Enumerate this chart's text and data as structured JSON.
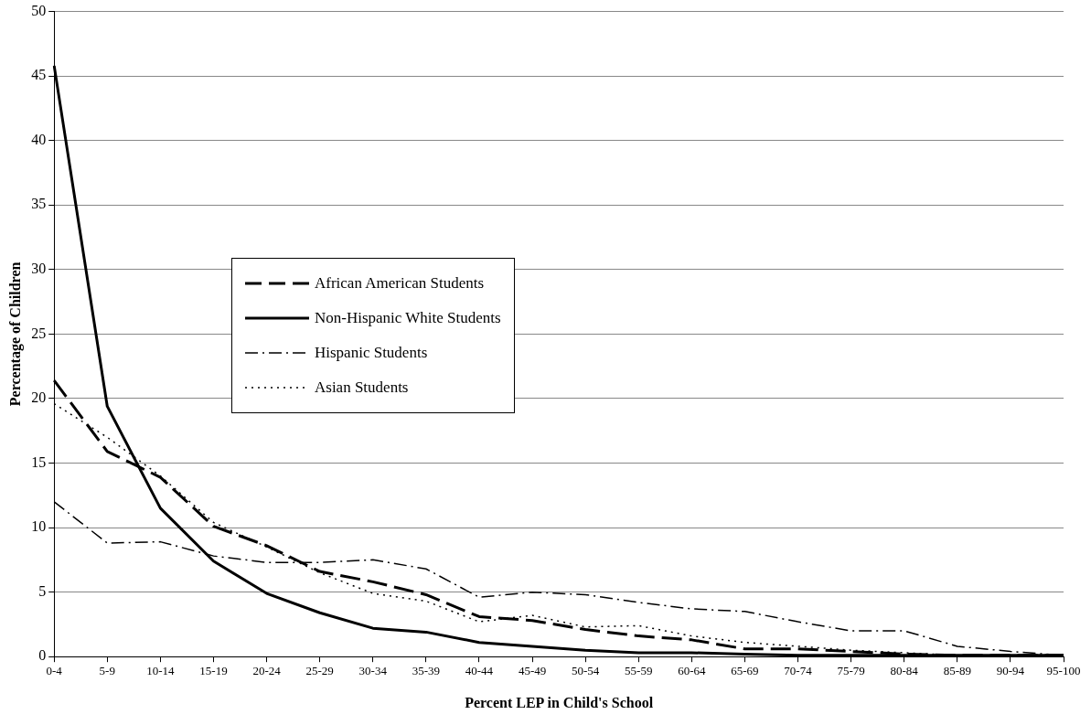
{
  "chart_data": {
    "type": "line",
    "xlabel": "Percent LEP in Child's School",
    "ylabel": "Percentage of Children",
    "categories": [
      "0-4",
      "5-9",
      "10-14",
      "15-19",
      "20-24",
      "25-29",
      "30-34",
      "35-39",
      "40-44",
      "45-49",
      "50-54",
      "55-59",
      "60-64",
      "65-69",
      "70-74",
      "75-79",
      "80-84",
      "85-89",
      "90-94",
      "95-100"
    ],
    "series": [
      {
        "name": "African American Students",
        "color": "#000000",
        "line_style": "dashed",
        "values": [
          21.4,
          15.9,
          13.9,
          10.1,
          8.6,
          6.6,
          5.8,
          4.8,
          3.1,
          2.8,
          2.1,
          1.6,
          1.3,
          0.6,
          0.6,
          0.4,
          0.2,
          0.1,
          0.1,
          0.1
        ]
      },
      {
        "name": "Non-Hispanic White Students",
        "color": "#000000",
        "line_style": "solid",
        "values": [
          45.8,
          19.4,
          11.5,
          7.4,
          4.9,
          3.4,
          2.2,
          1.9,
          1.1,
          0.8,
          0.5,
          0.3,
          0.3,
          0.2,
          0.1,
          0.1,
          0.1,
          0.1,
          0.1,
          0.1
        ]
      },
      {
        "name": "Hispanic Students",
        "color": "#000000",
        "line_style": "dashdot",
        "values": [
          12,
          8.8,
          8.9,
          7.8,
          7.3,
          7.3,
          7.5,
          6.8,
          4.6,
          5.0,
          4.8,
          4.2,
          3.7,
          3.5,
          2.7,
          2.0,
          2.0,
          0.8,
          0.4,
          0.1
        ]
      },
      {
        "name": "Asian Students",
        "color": "#000000",
        "line_style": "dotted",
        "values": [
          19.6,
          17.0,
          14.0,
          10.4,
          8.5,
          6.5,
          4.9,
          4.3,
          2.7,
          3.2,
          2.3,
          2.4,
          1.6,
          1.1,
          0.8,
          0.5,
          0.3,
          0.1,
          0.1,
          0.1
        ]
      }
    ],
    "ylim": [
      0,
      50
    ],
    "yticks": [
      0,
      5,
      10,
      15,
      20,
      25,
      30,
      35,
      40,
      45,
      50
    ],
    "grid": "y",
    "legend": "center",
    "marker": "none"
  }
}
